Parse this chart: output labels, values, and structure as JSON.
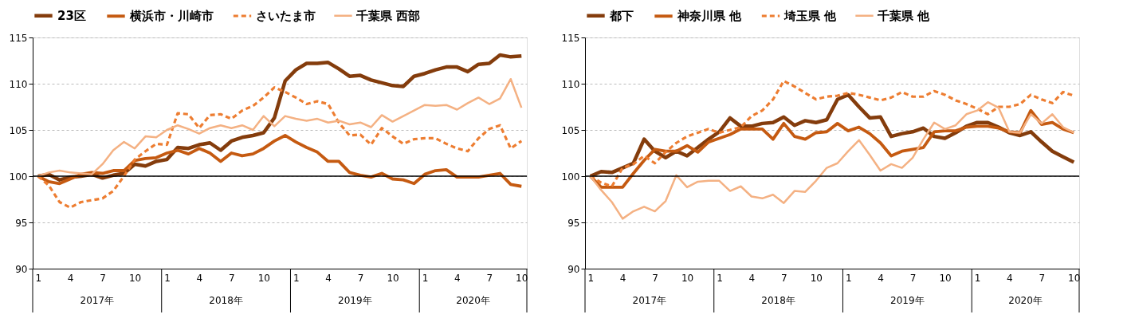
{
  "chart_data": [
    {
      "type": "line",
      "categories": [
        "1",
        null,
        null,
        "4",
        null,
        null,
        "7",
        null,
        null,
        "10",
        null,
        null,
        "1",
        null,
        null,
        "4",
        null,
        null,
        "7",
        null,
        null,
        "10",
        null,
        null,
        "1",
        null,
        null,
        "4",
        null,
        null,
        "7",
        null,
        null,
        "10",
        null,
        null,
        "1",
        null,
        null,
        "4",
        null,
        null,
        "7",
        null,
        null,
        "10"
      ],
      "series": [
        {
          "name": "23区",
          "color": "#843c0c",
          "line_style": "solid",
          "values": [
            100,
            100.2,
            99.6,
            99.9,
            100,
            100.2,
            99.8,
            100.1,
            100.3,
            101.3,
            101.1,
            101.6,
            101.8,
            103.1,
            103,
            103.4,
            103.6,
            102.8,
            103.8,
            104.2,
            104.4,
            104.7,
            106.3,
            110.3,
            111.5,
            112.2,
            112.2,
            112.3,
            111.6,
            110.8,
            110.9,
            110.4,
            110.1,
            109.8,
            109.7,
            110.8,
            111.1,
            111.5,
            111.8,
            111.8,
            111.3,
            112.1,
            112.2,
            113.1,
            112.9,
            113.0
          ]
        },
        {
          "name": "横浜市・川崎市",
          "color": "#c55a11",
          "line_style": "solid",
          "values": [
            100,
            99.4,
            99.2,
            99.7,
            100.2,
            100.4,
            100.3,
            100.6,
            100.6,
            101.7,
            101.9,
            102,
            102.5,
            102.8,
            102.4,
            103,
            102.5,
            101.6,
            102.5,
            102.2,
            102.4,
            103,
            103.8,
            104.4,
            103.7,
            103.1,
            102.6,
            101.6,
            101.6,
            100.4,
            100.1,
            99.9,
            100.3,
            99.7,
            99.6,
            99.2,
            100.2,
            100.6,
            100.7,
            99.9,
            99.9,
            99.9,
            100.1,
            100.3,
            99.1,
            98.9
          ]
        },
        {
          "name": "さいたま市",
          "color": "#ed7d31",
          "line_style": "dashed",
          "values": [
            100,
            99,
            97.2,
            96.6,
            97.2,
            97.4,
            97.6,
            98.4,
            100,
            101.8,
            102.7,
            103.5,
            103.4,
            106.8,
            106.7,
            105.2,
            106.6,
            106.7,
            106.2,
            107.1,
            107.6,
            108.5,
            109.6,
            109.1,
            108.5,
            107.8,
            108.1,
            107.8,
            105.8,
            104.4,
            104.5,
            103.4,
            105.2,
            104.3,
            103.5,
            104,
            104.1,
            104.1,
            103.5,
            103,
            102.7,
            104.1,
            105.1,
            105.5,
            103,
            103.8
          ]
        },
        {
          "name": "千葉県 西部",
          "color": "#f4b183",
          "line_style": "solid",
          "values": [
            100,
            100.4,
            100.6,
            100.4,
            100.3,
            100.2,
            101.3,
            102.8,
            103.7,
            103,
            104.3,
            104.2,
            105,
            105.5,
            105.1,
            104.6,
            105.2,
            105.5,
            105.2,
            105.5,
            105,
            106.5,
            105.4,
            106.5,
            106.2,
            106,
            106.2,
            105.8,
            106,
            105.6,
            105.8,
            105.3,
            106.6,
            105.9,
            106.5,
            107.1,
            107.7,
            107.6,
            107.7,
            107.2,
            107.9,
            108.5,
            107.8,
            108.4,
            110.5,
            107.4
          ]
        }
      ],
      "ylim": [
        90,
        115
      ],
      "yticks": [
        90,
        95,
        100,
        105,
        110,
        115
      ],
      "grid": "y",
      "legend": "top",
      "ref_lines": [
        {
          "axis": "y",
          "value": 100,
          "color": "#000000"
        }
      ],
      "annotations": [
        "2017年",
        "2018年",
        "2019年",
        "2020年"
      ]
    },
    {
      "type": "line",
      "categories": [
        "1",
        null,
        null,
        "4",
        null,
        null,
        "7",
        null,
        null,
        "10",
        null,
        null,
        "1",
        null,
        null,
        "4",
        null,
        null,
        "7",
        null,
        null,
        "10",
        null,
        null,
        "1",
        null,
        null,
        "4",
        null,
        null,
        "7",
        null,
        null,
        "10",
        null,
        null,
        "1",
        null,
        null,
        "4",
        null,
        null,
        "7",
        null,
        null,
        "10"
      ],
      "series": [
        {
          "name": "都下",
          "color": "#843c0c",
          "line_style": "solid",
          "values": [
            100,
            100.5,
            100.4,
            100.9,
            101.4,
            104,
            102.7,
            102,
            102.7,
            102.2,
            103.1,
            104,
            104.8,
            106.3,
            105.4,
            105.4,
            105.7,
            105.8,
            106.4,
            105.5,
            106,
            105.8,
            106.1,
            108.3,
            108.8,
            107.5,
            106.3,
            106.4,
            104.3,
            104.6,
            104.8,
            105.2,
            104.3,
            104.1,
            104.7,
            105.4,
            105.8,
            105.8,
            105.3,
            104.7,
            104.4,
            104.8,
            103.7,
            102.7,
            102.1,
            101.5
          ]
        },
        {
          "name": "神奈川県 他",
          "color": "#c55a11",
          "line_style": "solid",
          "values": [
            100,
            98.8,
            98.8,
            98.8,
            100.3,
            101.7,
            102.9,
            102.7,
            102.7,
            103.3,
            102.6,
            103.7,
            104.1,
            104.5,
            105.1,
            105.1,
            105.1,
            104,
            105.7,
            104.3,
            104,
            104.7,
            104.8,
            105.7,
            104.9,
            105.3,
            104.6,
            103.6,
            102.2,
            102.7,
            102.9,
            103.1,
            104.8,
            104.9,
            104.9,
            105.3,
            105.4,
            105.4,
            105.2,
            104.8,
            104.7,
            107.1,
            105.6,
            105.8,
            105.1,
            104.7
          ]
        },
        {
          "name": "埼玉県 他",
          "color": "#ed7d31",
          "line_style": "dashed",
          "values": [
            100,
            99.3,
            98.9,
            100.9,
            101.3,
            102.2,
            101.4,
            102.6,
            103.6,
            104.3,
            104.7,
            105.1,
            104.7,
            105,
            105.3,
            106.5,
            107.1,
            108.3,
            110.3,
            109.7,
            109,
            108.3,
            108.6,
            108.7,
            109,
            108.8,
            108.5,
            108.2,
            108.5,
            109.1,
            108.6,
            108.6,
            109.2,
            108.8,
            108.2,
            107.8,
            107.3,
            106.7,
            107.5,
            107.5,
            107.8,
            108.8,
            108.3,
            107.9,
            109.1,
            108.7
          ]
        },
        {
          "name": "千葉県 他",
          "color": "#f4b183",
          "line_style": "solid",
          "values": [
            100,
            98.5,
            97.2,
            95.4,
            96.2,
            96.7,
            96.2,
            97.3,
            100.1,
            98.8,
            99.4,
            99.5,
            99.5,
            98.4,
            98.9,
            97.8,
            97.6,
            98,
            97.1,
            98.4,
            98.3,
            99.5,
            100.9,
            101.4,
            102.7,
            103.9,
            102.3,
            100.6,
            101.3,
            100.9,
            102,
            104,
            105.8,
            105.1,
            105.5,
            106.7,
            107.1,
            108,
            107.4,
            104.8,
            104.7,
            106.7,
            105.7,
            106.7,
            105.3,
            104.7
          ]
        }
      ],
      "ylim": [
        90,
        115
      ],
      "yticks": [
        90,
        95,
        100,
        105,
        110,
        115
      ],
      "grid": "y",
      "legend": "top",
      "ref_lines": [
        {
          "axis": "y",
          "value": 100,
          "color": "#000000"
        }
      ],
      "annotations": [
        "2017年",
        "2018年",
        "2019年",
        "2020年"
      ]
    }
  ]
}
